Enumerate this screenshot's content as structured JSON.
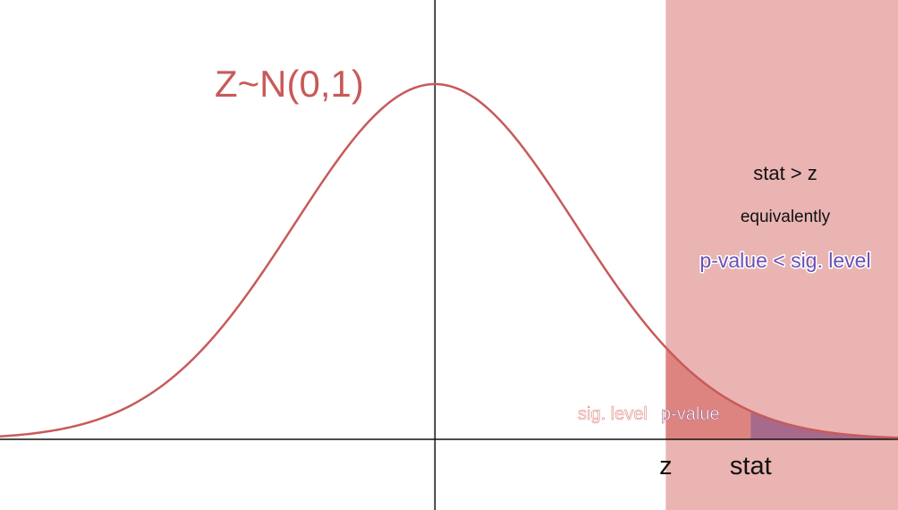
{
  "distribution_label": "Z~N(0,1)",
  "labels": {
    "z": "z",
    "stat": "stat",
    "sig_level": "sig. level",
    "p_value": "p-value",
    "rule_line1": "stat > z",
    "rule_line2": "equivalently",
    "rule_line3": "p-value < sig. level"
  },
  "values": {
    "z": 1.645,
    "stat": 2.25,
    "x_range": [
      -3.1,
      3.3
    ]
  },
  "colors": {
    "curve": "#c85a5a",
    "rejection_region": "#e9b4b2",
    "sig_area": "#de8480",
    "p_area": "#a76a8d",
    "p_text": "#6a4fb5",
    "axis": "#111111"
  }
}
